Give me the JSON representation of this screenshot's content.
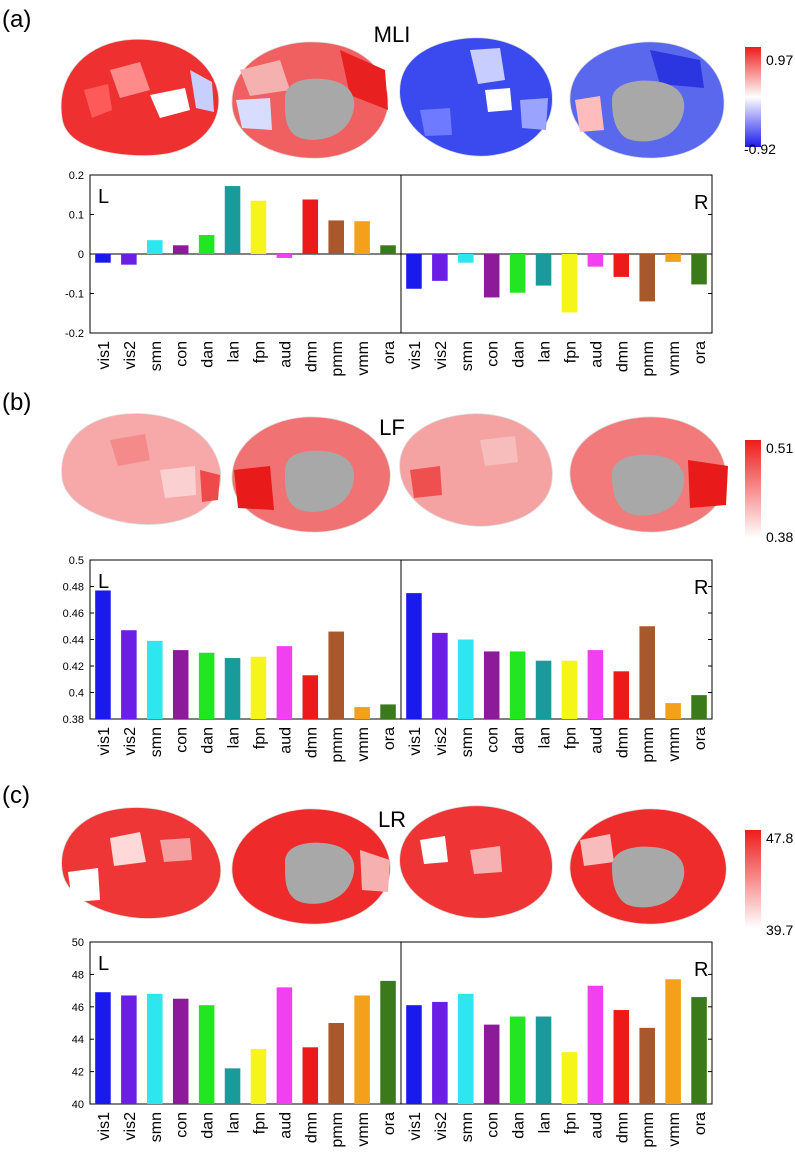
{
  "colors": {
    "vis1": "#1a1aee",
    "vis2": "#6a1ee6",
    "smn": "#2ee6f0",
    "con": "#8c1a9a",
    "dan": "#22e622",
    "lan": "#1a9a9a",
    "fpn": "#f5f51a",
    "aud": "#f040f0",
    "dmn": "#ee1a1a",
    "pmm": "#a8582a",
    "vmm": "#f5a01a",
    "ora": "#3a7a1a"
  },
  "chart_data": [
    {
      "type": "bar",
      "panel_label": "(a)",
      "title": "MLI",
      "categories": [
        "vis1",
        "vis2",
        "smn",
        "con",
        "dan",
        "lan",
        "fpn",
        "aud",
        "dmn",
        "pmm",
        "vmm",
        "ora"
      ],
      "ylim": [
        -0.2,
        0.2
      ],
      "yticks": [
        -0.2,
        -0.1,
        0,
        0.1,
        0.2
      ],
      "ytick_labels": [
        "-0.2",
        "-0.1",
        "0",
        "0.1",
        "0.2"
      ],
      "zero_line": true,
      "hemisphere_labels": [
        "L",
        "R"
      ],
      "series": [
        {
          "name": "L",
          "values": [
            -0.022,
            -0.027,
            0.035,
            0.022,
            0.048,
            0.172,
            0.135,
            -0.01,
            0.138,
            0.085,
            0.083,
            0.022
          ]
        },
        {
          "name": "R",
          "values": [
            -0.088,
            -0.068,
            -0.022,
            -0.11,
            -0.098,
            -0.08,
            -0.148,
            -0.032,
            -0.058,
            -0.12,
            -0.02,
            -0.077
          ]
        }
      ],
      "colorbar": {
        "max_label": "0.97",
        "min_label": "-0.92",
        "scheme": "diverging"
      }
    },
    {
      "type": "bar",
      "panel_label": "(b)",
      "title": "LF",
      "categories": [
        "vis1",
        "vis2",
        "smn",
        "con",
        "dan",
        "lan",
        "fpn",
        "aud",
        "dmn",
        "pmm",
        "vmm",
        "ora"
      ],
      "ylim": [
        0.38,
        0.5
      ],
      "yticks": [
        0.38,
        0.4,
        0.42,
        0.44,
        0.46,
        0.48,
        0.5
      ],
      "ytick_labels": [
        "0.38",
        "0.4",
        "0.42",
        "0.44",
        "0.46",
        "0.48",
        "0.5"
      ],
      "zero_line": false,
      "hemisphere_labels": [
        "L",
        "R"
      ],
      "series": [
        {
          "name": "L",
          "values": [
            0.477,
            0.447,
            0.439,
            0.432,
            0.43,
            0.426,
            0.427,
            0.435,
            0.413,
            0.446,
            0.389,
            0.391
          ]
        },
        {
          "name": "R",
          "values": [
            0.475,
            0.445,
            0.44,
            0.431,
            0.431,
            0.424,
            0.424,
            0.432,
            0.416,
            0.45,
            0.392,
            0.398
          ]
        }
      ],
      "colorbar": {
        "max_label": "0.51",
        "min_label": "0.38",
        "scheme": "sequential"
      }
    },
    {
      "type": "bar",
      "panel_label": "(c)",
      "title": "LR",
      "categories": [
        "vis1",
        "vis2",
        "smn",
        "con",
        "dan",
        "lan",
        "fpn",
        "aud",
        "dmn",
        "pmm",
        "vmm",
        "ora"
      ],
      "ylim": [
        40,
        50
      ],
      "yticks": [
        40,
        42,
        44,
        46,
        48,
        50
      ],
      "ytick_labels": [
        "40",
        "42",
        "44",
        "46",
        "48",
        "50"
      ],
      "zero_line": false,
      "hemisphere_labels": [
        "L",
        "R"
      ],
      "series": [
        {
          "name": "L",
          "values": [
            46.9,
            46.7,
            46.8,
            46.5,
            46.1,
            42.2,
            43.4,
            47.2,
            43.5,
            45.0,
            46.7,
            47.6
          ]
        },
        {
          "name": "R",
          "values": [
            46.1,
            46.3,
            46.8,
            44.9,
            45.4,
            45.4,
            43.2,
            47.3,
            45.8,
            44.7,
            47.7,
            46.6
          ]
        }
      ],
      "colorbar": {
        "max_label": "47.8",
        "min_label": "39.7",
        "scheme": "sequential"
      }
    }
  ]
}
